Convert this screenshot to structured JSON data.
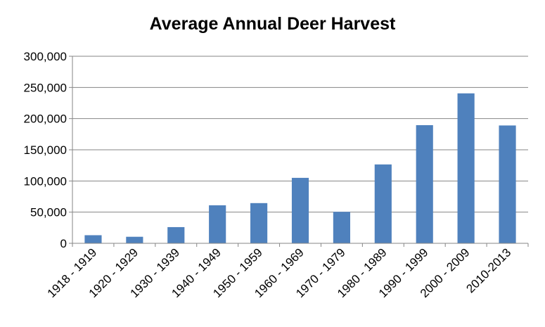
{
  "chart_data": {
    "type": "bar",
    "title": "Average Annual Deer Harvest",
    "xlabel": "",
    "ylabel": "",
    "categories": [
      "1918 - 1919",
      "1920 - 1929",
      "1930 - 1939",
      "1940 - 1949",
      "1950 - 1959",
      "1960 - 1969",
      "1970 - 1979",
      "1980 - 1989",
      "1990 - 1999",
      "2000 - 2009",
      "2010-2013"
    ],
    "values": [
      13000,
      10500,
      26000,
      61000,
      64500,
      105000,
      50500,
      126500,
      189500,
      240500,
      189000
    ],
    "ylim": [
      0,
      300000
    ],
    "yticks": [
      "0",
      "50,000",
      "100,000",
      "150,000",
      "200,000",
      "250,000",
      "300,000"
    ],
    "grid": true,
    "legend": "none",
    "bar_color": "#4F81BD"
  }
}
